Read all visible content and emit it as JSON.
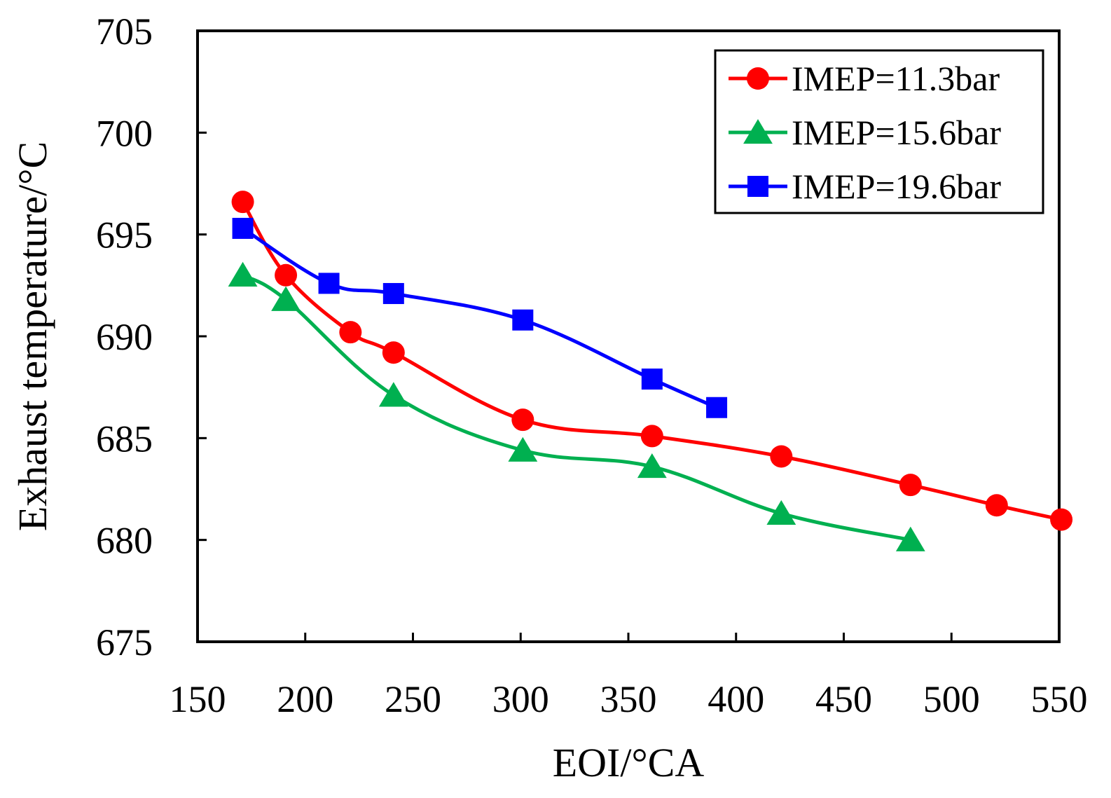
{
  "chart_data": {
    "type": "line",
    "title": "",
    "xlabel": "EOI/°CA",
    "ylabel": "Exhaust temperature/°C",
    "xlim": [
      150,
      550
    ],
    "ylim": [
      675,
      705
    ],
    "xticks": [
      150,
      200,
      250,
      300,
      350,
      400,
      450,
      500,
      550
    ],
    "yticks": [
      675,
      680,
      685,
      690,
      695,
      700,
      705
    ],
    "grid": false,
    "legend_position": "top-right",
    "series": [
      {
        "name": "IMEP=11.3bar",
        "color": "#ff0000",
        "marker": "circle",
        "x": [
          171,
          191,
          221,
          241,
          301,
          361,
          421,
          481,
          521,
          551
        ],
        "y": [
          696.6,
          693.0,
          690.2,
          689.2,
          685.9,
          685.1,
          684.1,
          682.7,
          681.7,
          681.0
        ]
      },
      {
        "name": "IMEP=15.6bar",
        "color": "#00b050",
        "marker": "triangle",
        "x": [
          171,
          191,
          241,
          301,
          361,
          421,
          481
        ],
        "y": [
          693.0,
          691.8,
          687.1,
          684.4,
          683.6,
          681.3,
          680.0
        ]
      },
      {
        "name": "IMEP=19.6bar",
        "color": "#0000ff",
        "marker": "square",
        "x": [
          171,
          211,
          241,
          301,
          361,
          391
        ],
        "y": [
          695.3,
          692.6,
          692.1,
          690.8,
          687.9,
          686.5
        ]
      }
    ]
  }
}
